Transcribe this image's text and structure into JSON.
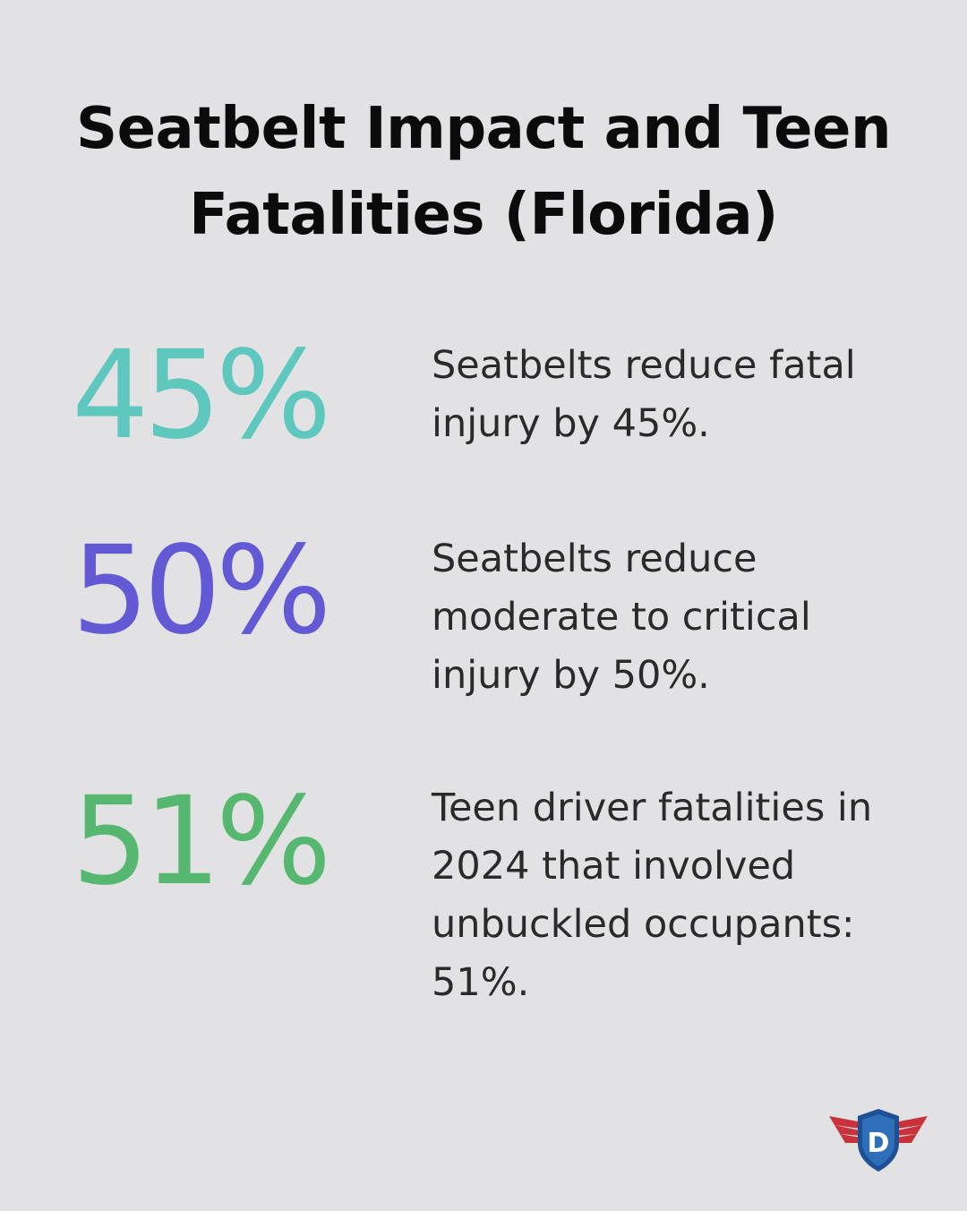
{
  "title": {
    "line1": "Seatbelt Impact and Teen",
    "line2": "Fatalities (Florida)"
  },
  "stats": [
    {
      "value": "45%",
      "description": "Seatbelts reduce fatal injury by 45%.",
      "color": "#5ec8be"
    },
    {
      "value": "50%",
      "description": "Seatbelts reduce moderate to critical injury by 50%.",
      "color": "#6359d4"
    },
    {
      "value": "51%",
      "description": "Teen driver fatalities in 2024 that involved unbuckled occupants: 51%.",
      "color": "#56b870"
    }
  ],
  "logo": {
    "letter": "D",
    "icon": "shield-wings-logo",
    "colors": {
      "wing": "#c8333b",
      "shield": "#1f4f95",
      "shield_inner": "#2e6fb9"
    }
  },
  "background": "#e2e2e4"
}
